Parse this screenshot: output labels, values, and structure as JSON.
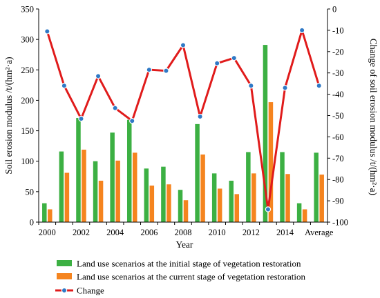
{
  "chart_data": {
    "type": "bar",
    "categories": [
      "2000",
      "2001",
      "2002",
      "2003",
      "2004",
      "2005",
      "2006",
      "2007",
      "2008",
      "2009",
      "2010",
      "2011",
      "2012",
      "2013",
      "2014",
      "2015",
      "Average"
    ],
    "x_tick_labels": [
      "2000",
      "",
      "2002",
      "",
      "2004",
      "",
      "2006",
      "",
      "2008",
      "",
      "2010",
      "",
      "2012",
      "",
      "2014",
      "",
      "Average"
    ],
    "xlabel": "Year",
    "ylabel_left": "Soil erosion modulus /t/(hm²·a)",
    "ylabel_right": "Change of soil erosion modulus /t/(hm²·a)",
    "ylim_left": [
      0,
      350
    ],
    "yticks_left": [
      0,
      50,
      100,
      150,
      200,
      250,
      300,
      350
    ],
    "ylim_right": [
      -100,
      0
    ],
    "yticks_right": [
      -100,
      -90,
      -80,
      -70,
      -60,
      -50,
      -40,
      -30,
      -20,
      -10,
      0
    ],
    "series": [
      {
        "name": "Land use scenarios at the initial stage of vegetation restoration",
        "type": "bar",
        "axis": "left",
        "color": "#3cb043",
        "values": [
          31,
          116,
          171,
          100,
          147,
          168,
          88,
          91,
          53,
          161,
          80,
          68,
          115,
          291,
          115,
          31,
          114
        ]
      },
      {
        "name": "Land use scenarios at the current stage of vegetation restoration",
        "type": "bar",
        "axis": "left",
        "color": "#f5841f",
        "values": [
          21,
          81,
          119,
          68,
          101,
          114,
          60,
          62,
          36,
          111,
          55,
          46,
          80,
          197,
          79,
          21,
          78
        ]
      },
      {
        "name": "Change",
        "type": "line",
        "axis": "right",
        "color": "#e01b1b",
        "marker_color": "#2f79c6",
        "values": [
          -10.5,
          -36,
          -51.5,
          -31.5,
          -46.5,
          -52.5,
          -28.5,
          -29,
          -17,
          -50.5,
          -25.5,
          -23,
          -36,
          -94,
          -37,
          -10,
          -36
        ]
      }
    ],
    "legend_position": "bottom",
    "grid": false
  }
}
